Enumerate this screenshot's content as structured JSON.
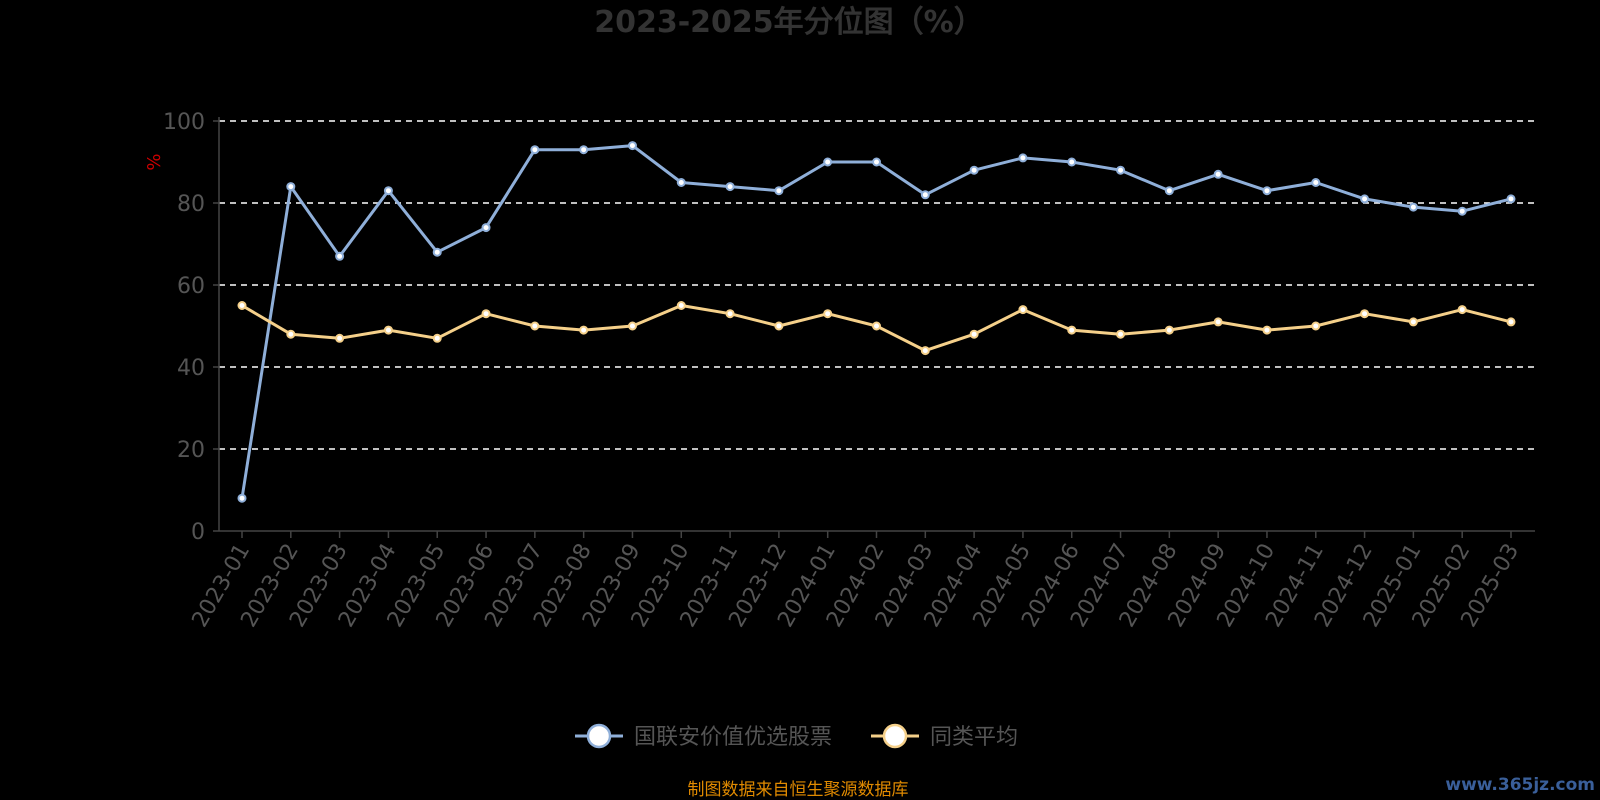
{
  "chart_data": {
    "type": "line",
    "title": "2023-2025年分位图（%）",
    "ylabel": "%",
    "xlabel": "",
    "ylim": [
      0,
      100
    ],
    "yticks": [
      0,
      20,
      40,
      60,
      80,
      100
    ],
    "grid": true,
    "legend_position": "bottom",
    "categories": [
      "2023-01",
      "2023-02",
      "2023-03",
      "2023-04",
      "2023-05",
      "2023-06",
      "2023-07",
      "2023-08",
      "2023-09",
      "2023-10",
      "2023-11",
      "2023-12",
      "2024-01",
      "2024-02",
      "2024-03",
      "2024-04",
      "2024-05",
      "2024-06",
      "2024-07",
      "2024-08",
      "2024-09",
      "2024-10",
      "2024-11",
      "2024-12",
      "2025-01",
      "2025-02",
      "2025-03"
    ],
    "series": [
      {
        "name": "国联安价值优选股票",
        "color": "#8fafd9",
        "values": [
          8,
          84,
          67,
          83,
          68,
          74,
          93,
          93,
          94,
          85,
          84,
          83,
          90,
          90,
          82,
          88,
          91,
          90,
          88,
          83,
          87,
          83,
          85,
          81,
          79,
          78,
          81
        ]
      },
      {
        "name": "同类平均",
        "color": "#f5d08a",
        "values": [
          55,
          48,
          47,
          49,
          47,
          53,
          50,
          49,
          50,
          55,
          53,
          50,
          53,
          50,
          44,
          48,
          54,
          49,
          48,
          49,
          51,
          49,
          50,
          53,
          51,
          54,
          51
        ]
      }
    ]
  },
  "footer": {
    "source": "制图数据来自恒生聚源数据库",
    "watermark": "www.365jz.com"
  }
}
